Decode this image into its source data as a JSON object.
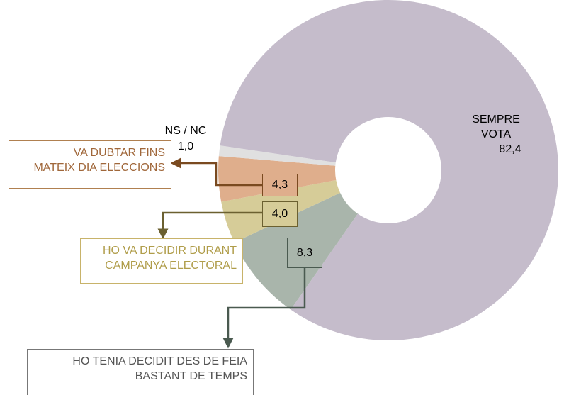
{
  "chart_data": {
    "type": "donut",
    "categories": [
      "HO TENIA DECIDIT DES DE FEIA\nBASTANT DE TEMPS",
      "HO VA DECIDIR DURANT\nCAMPANYA ELECTORAL",
      "VA DUBTAR FINS\nMATEIX DIA ELECCIONS",
      "NS / NC",
      "SEMPRE\nVOTA"
    ],
    "values": [
      8.3,
      4.0,
      4.3,
      1.0,
      82.4
    ],
    "value_labels": [
      "8,3",
      "4,0",
      "4,3",
      "1,0",
      "82,4"
    ],
    "colors": [
      "#a9b5ab",
      "#d6cc98",
      "#dfae8c",
      "#e0e0e0",
      "#c5bccb"
    ]
  }
}
